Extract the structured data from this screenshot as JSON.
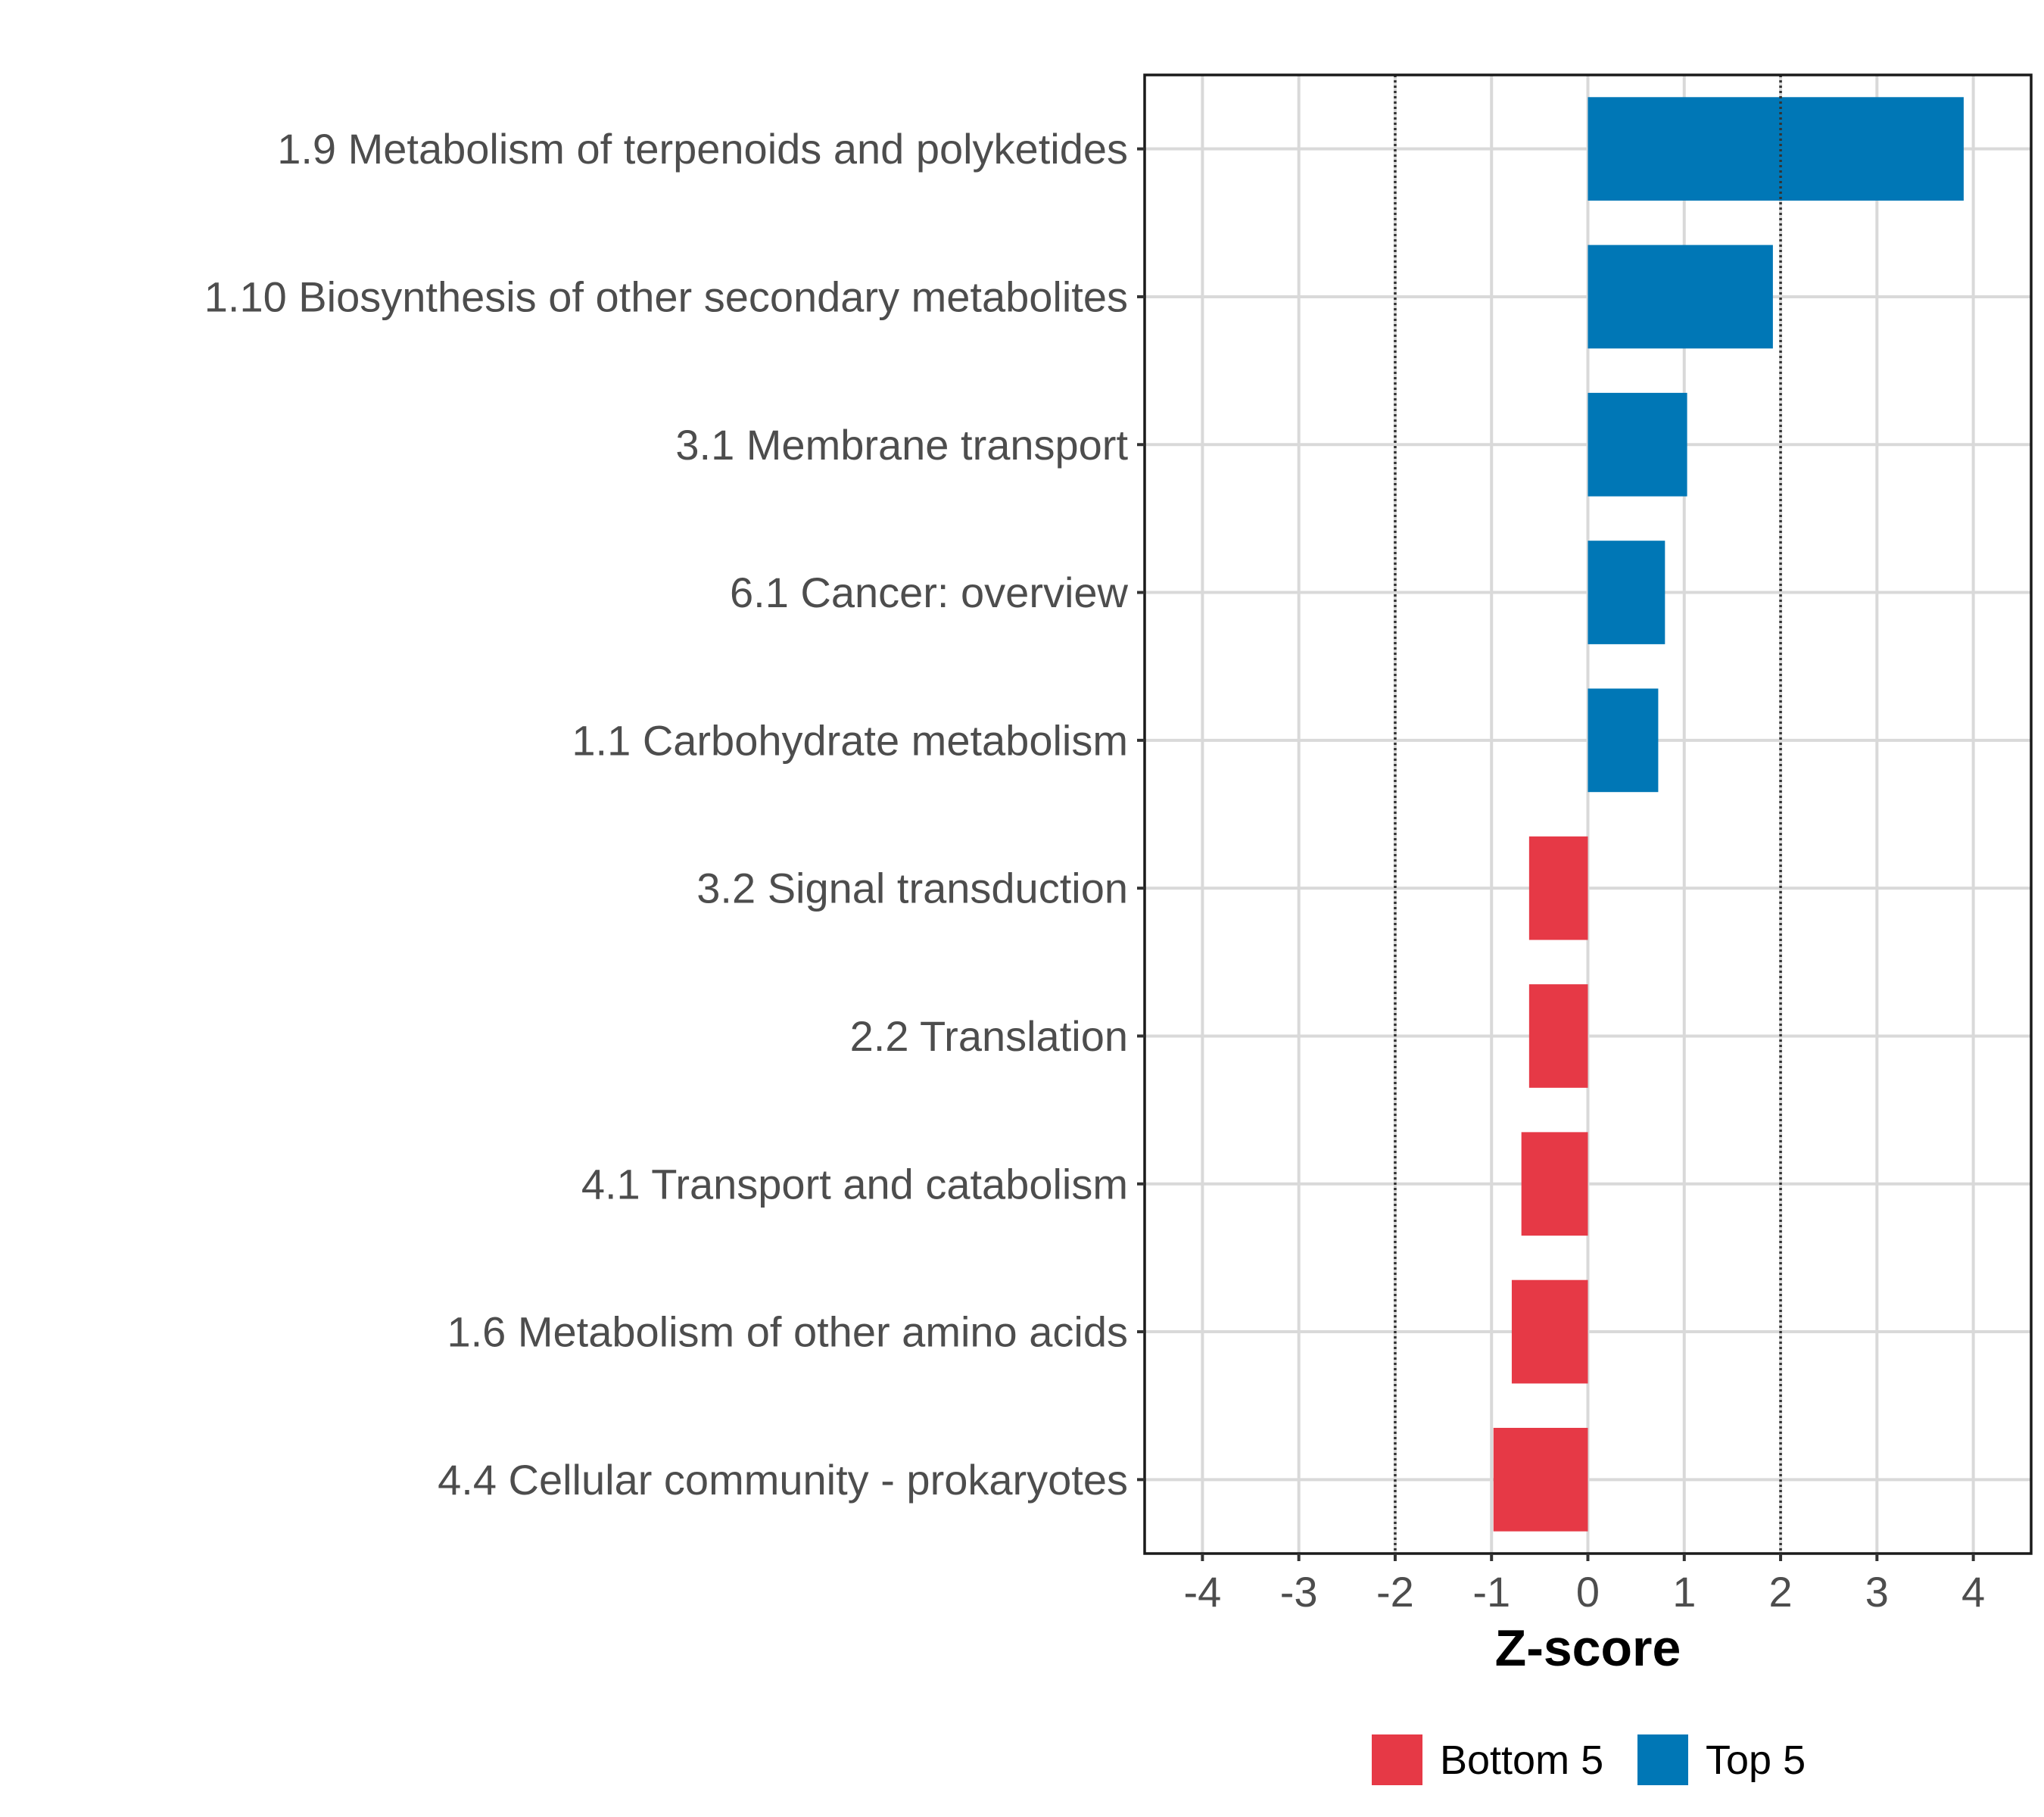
{
  "chart_data": {
    "type": "bar",
    "orientation": "horizontal",
    "categories": [
      "1.9 Metabolism of terpenoids and polyketides",
      "1.10 Biosynthesis of other secondary metabolites",
      "3.1 Membrane transport",
      "6.1 Cancer: overview",
      "1.1 Carbohydrate metabolism",
      "3.2 Signal transduction",
      "2.2 Translation",
      "4.1 Transport and catabolism",
      "1.6 Metabolism of other amino acids",
      "4.4 Cellular community - prokaryotes"
    ],
    "values": [
      3.9,
      1.92,
      1.03,
      0.8,
      0.73,
      -0.61,
      -0.61,
      -0.69,
      -0.79,
      -0.98
    ],
    "groups": [
      "Top 5",
      "Top 5",
      "Top 5",
      "Top 5",
      "Top 5",
      "Bottom 5",
      "Bottom 5",
      "Bottom 5",
      "Bottom 5",
      "Bottom 5"
    ],
    "xlabel": "Z-score",
    "ylabel": "",
    "xlim": [
      -4.6,
      4.6
    ],
    "xticks": [
      -4,
      -3,
      -2,
      -1,
      0,
      1,
      2,
      3,
      4
    ],
    "reference_lines": [
      -2,
      2
    ],
    "grid": true,
    "legend": {
      "position": "bottom",
      "entries": [
        {
          "label": "Bottom 5",
          "color": "#e63946"
        },
        {
          "label": "Top 5",
          "color": "#0077b6"
        }
      ]
    },
    "colors": {
      "Top 5": "#0077b6",
      "Bottom 5": "#e63946"
    }
  }
}
